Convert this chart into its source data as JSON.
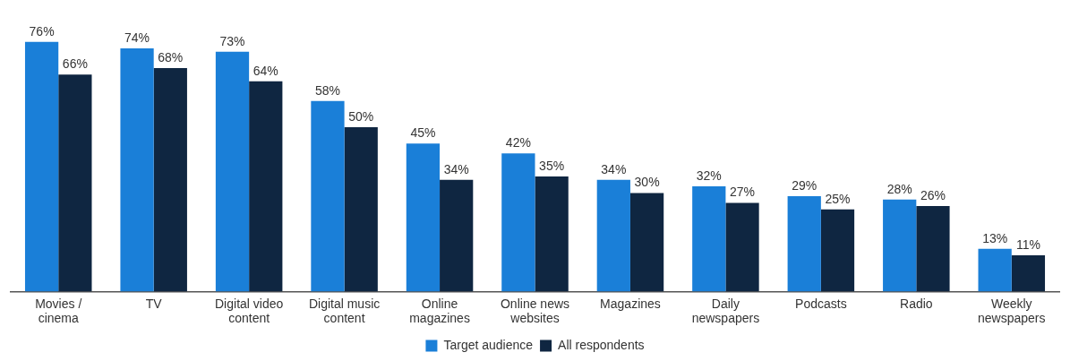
{
  "chart_data": {
    "type": "bar",
    "categories": [
      "Movies / cinema",
      "TV",
      "Digital video content",
      "Digital music content",
      "Online magazines",
      "Online news websites",
      "Magazines",
      "Daily newspapers",
      "Podcasts",
      "Radio",
      "Weekly newspapers"
    ],
    "series": [
      {
        "name": "Target audience",
        "color": "#1a7fd8",
        "values": [
          76,
          74,
          73,
          58,
          45,
          42,
          34,
          32,
          29,
          28,
          13
        ],
        "value_labels": [
          "76%",
          "74%",
          "73%",
          "58%",
          "45%",
          "42%",
          "34%",
          "32%",
          "29%",
          "28%",
          "13%"
        ]
      },
      {
        "name": "All respondents",
        "color": "#0f2641",
        "values": [
          66,
          68,
          64,
          50,
          34,
          35,
          30,
          27,
          25,
          26,
          11
        ],
        "value_labels": [
          "66%",
          "68%",
          "64%",
          "50%",
          "34%",
          "35%",
          "30%",
          "27%",
          "25%",
          "26%",
          "11%"
        ]
      }
    ],
    "legend": "bottom",
    "grid": false
  }
}
